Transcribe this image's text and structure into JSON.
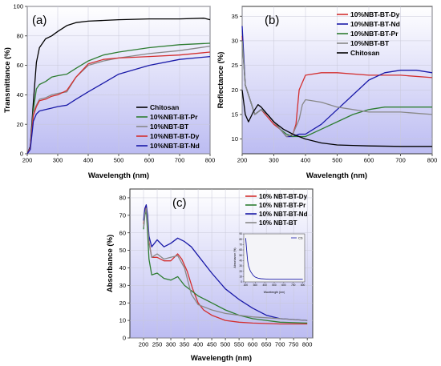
{
  "chart_data": [
    {
      "type": "line",
      "panel_label": "(a)",
      "xlabel": "Wavelength (nm)",
      "ylabel": "Transmittance (%)",
      "xlim": [
        200,
        800
      ],
      "ylim": [
        0,
        100
      ],
      "xticks": [
        "200",
        "300",
        "400",
        "500",
        "600",
        "700",
        "800"
      ],
      "yticks": [
        "0",
        "20",
        "40",
        "60",
        "80",
        "100"
      ],
      "grid": true,
      "legend_position": "bottom-right",
      "series": [
        {
          "name": "Chitosan",
          "color": "#000000",
          "x": [
            200,
            210,
            220,
            230,
            240,
            260,
            280,
            300,
            330,
            360,
            400,
            450,
            500,
            600,
            700,
            780,
            800
          ],
          "y": [
            0,
            5,
            35,
            62,
            72,
            78,
            80,
            83,
            87,
            89,
            90,
            90.5,
            91,
            91.5,
            91.5,
            92,
            91
          ]
        },
        {
          "name": "10%NBT-BT-Pr",
          "color": "#2e7d32",
          "x": [
            200,
            210,
            220,
            230,
            240,
            260,
            280,
            300,
            330,
            360,
            400,
            450,
            500,
            600,
            700,
            800
          ],
          "y": [
            0,
            4,
            30,
            44,
            47,
            49,
            52,
            53,
            54,
            58,
            63,
            67,
            69,
            72,
            74,
            75
          ]
        },
        {
          "name": "10%NBT-BT",
          "color": "#888888",
          "x": [
            200,
            210,
            220,
            230,
            240,
            260,
            280,
            300,
            330,
            360,
            400,
            450,
            500,
            600,
            700,
            800
          ],
          "y": [
            0,
            4,
            28,
            33,
            37,
            38,
            40,
            41,
            42,
            52,
            60,
            63,
            65,
            68,
            70,
            73
          ]
        },
        {
          "name": "10%NBT-BT-Dy",
          "color": "#d32f2f",
          "x": [
            200,
            210,
            220,
            230,
            240,
            260,
            280,
            300,
            330,
            360,
            400,
            450,
            500,
            600,
            700,
            800
          ],
          "y": [
            0,
            4,
            26,
            32,
            36,
            37,
            39,
            40,
            43,
            52,
            61,
            64,
            65,
            66,
            67,
            69
          ]
        },
        {
          "name": "10%NBT-BT-Nd",
          "color": "#1a1aa8",
          "x": [
            200,
            210,
            220,
            230,
            240,
            260,
            280,
            300,
            330,
            360,
            400,
            450,
            500,
            600,
            700,
            800
          ],
          "y": [
            0,
            3,
            22,
            27,
            29,
            30,
            31,
            32,
            33,
            37,
            42,
            48,
            54,
            60,
            64,
            66
          ]
        }
      ]
    },
    {
      "type": "line",
      "panel_label": "(b)",
      "xlabel": "Wavelength (nm)",
      "ylabel": "Reflectance (%)",
      "xlim": [
        200,
        800
      ],
      "ylim": [
        7,
        37
      ],
      "xticks": [
        "200",
        "300",
        "400",
        "500",
        "600",
        "700",
        "800"
      ],
      "yticks": [
        "10",
        "15",
        "20",
        "25",
        "30",
        "35"
      ],
      "grid": true,
      "legend_position": "top-right",
      "series": [
        {
          "name": "10%NBT-BT-Dy",
          "color": "#d32f2f",
          "x": [
            200,
            210,
            220,
            240,
            260,
            280,
            300,
            320,
            340,
            350,
            360,
            370,
            380,
            400,
            450,
            500,
            600,
            700,
            800
          ],
          "y": [
            31,
            21,
            19,
            15,
            16,
            14.5,
            13,
            12,
            10.5,
            10.5,
            11,
            13,
            20,
            23,
            23.5,
            23.5,
            23,
            23,
            22.5
          ]
        },
        {
          "name": "10%NBT-BT-Nd",
          "color": "#1a1aa8",
          "x": [
            200,
            210,
            220,
            240,
            260,
            280,
            300,
            320,
            340,
            360,
            380,
            400,
            450,
            500,
            550,
            600,
            650,
            700,
            750,
            800
          ],
          "y": [
            33,
            21,
            19,
            15,
            16,
            15,
            13.5,
            12,
            10.5,
            10.5,
            11,
            11,
            13,
            16,
            19,
            22,
            23.5,
            24,
            24,
            23.5
          ]
        },
        {
          "name": "10%NBT-BT-Pr",
          "color": "#2e7d32",
          "x": [
            200,
            210,
            220,
            240,
            260,
            280,
            300,
            320,
            340,
            360,
            380,
            400,
            450,
            500,
            550,
            600,
            650,
            700,
            750,
            800
          ],
          "y": [
            30,
            21,
            19,
            15,
            16,
            15,
            13.5,
            12,
            11,
            10.5,
            10.5,
            10.5,
            12,
            13.5,
            15,
            16,
            16.5,
            16.5,
            16.5,
            16.5
          ]
        },
        {
          "name": "10%NBT-BT",
          "color": "#888888",
          "x": [
            200,
            210,
            220,
            240,
            260,
            280,
            300,
            320,
            340,
            360,
            380,
            390,
            400,
            450,
            500,
            600,
            700,
            800
          ],
          "y": [
            30,
            21,
            19,
            15,
            16,
            15,
            13.5,
            12,
            10.5,
            11,
            14,
            17,
            18,
            17.5,
            16.5,
            15.5,
            15.5,
            15
          ]
        },
        {
          "name": "Chitosan",
          "color": "#000000",
          "x": [
            200,
            210,
            220,
            235,
            250,
            260,
            280,
            300,
            330,
            360,
            400,
            450,
            500,
            550,
            600,
            700,
            800
          ],
          "y": [
            20,
            15,
            13.5,
            15.5,
            17,
            16.5,
            15,
            13.5,
            12,
            11,
            10,
            9.2,
            8.8,
            8.7,
            8.6,
            8.5,
            8.5
          ]
        }
      ]
    },
    {
      "type": "line",
      "panel_label": "(c)",
      "xlabel": "Wavelength (nm)",
      "ylabel": "Absorbance (%)",
      "xlim": [
        150,
        820
      ],
      "ylim": [
        0,
        85
      ],
      "xticks": [
        "200",
        "250",
        "300",
        "350",
        "400",
        "450",
        "500",
        "550",
        "600",
        "650",
        "700",
        "750",
        "800"
      ],
      "yticks": [
        "0",
        "10",
        "20",
        "30",
        "40",
        "50",
        "60",
        "70",
        "80"
      ],
      "grid": true,
      "legend_position": "top-right",
      "series": [
        {
          "name": "10% NBT-BT-Dy",
          "color": "#d32f2f",
          "x": [
            200,
            205,
            210,
            215,
            220,
            230,
            250,
            275,
            300,
            325,
            340,
            360,
            380,
            400,
            420,
            450,
            500,
            550,
            600,
            700,
            800
          ],
          "y": [
            65,
            72,
            75,
            68,
            55,
            46,
            46,
            44,
            44,
            48,
            45,
            38,
            28,
            20,
            16,
            13,
            10,
            9,
            8.5,
            8,
            8
          ]
        },
        {
          "name": "10% NBT-BT-Pr",
          "color": "#2e7d32",
          "x": [
            200,
            205,
            210,
            215,
            220,
            230,
            250,
            275,
            300,
            325,
            350,
            400,
            450,
            500,
            550,
            600,
            650,
            700,
            800
          ],
          "y": [
            62,
            70,
            73,
            60,
            45,
            36,
            37,
            34,
            33,
            35,
            30,
            24,
            20,
            16,
            13,
            11,
            10,
            9,
            8.5
          ]
        },
        {
          "name": "10% NBT-BT-Nd",
          "color": "#1a1aa8",
          "x": [
            200,
            205,
            210,
            215,
            220,
            230,
            250,
            275,
            300,
            325,
            350,
            375,
            400,
            450,
            500,
            550,
            600,
            650,
            700,
            800
          ],
          "y": [
            67,
            74,
            76,
            70,
            58,
            52,
            56,
            52,
            54,
            57,
            55,
            52,
            47,
            37,
            28,
            22,
            17,
            13,
            11,
            10
          ]
        },
        {
          "name": "10% NBT-BT",
          "color": "#888888",
          "x": [
            200,
            205,
            210,
            215,
            220,
            230,
            250,
            275,
            300,
            325,
            350,
            375,
            400,
            450,
            500,
            550,
            600,
            700,
            800
          ],
          "y": [
            63,
            71,
            74,
            66,
            54,
            46,
            48,
            45,
            46,
            47,
            40,
            25,
            19,
            16,
            14,
            13,
            12,
            11,
            10
          ]
        }
      ],
      "inset": {
        "legend": "CS",
        "xlabel": "Wavelength (nm)",
        "ylabel": "Absorbance (%)",
        "xticks": [
          "200",
          "300",
          "400",
          "500",
          "600",
          "700",
          "800"
        ],
        "yticks": [
          "0",
          "10",
          "20",
          "30",
          "40",
          "50",
          "60",
          "70",
          "80",
          "90"
        ],
        "xlim": [
          180,
          820
        ],
        "ylim": [
          0,
          90
        ],
        "series": {
          "color": "#1a1aa8",
          "x": [
            200,
            210,
            220,
            230,
            250,
            280,
            300,
            330,
            360,
            400,
            450,
            500,
            600,
            700,
            800
          ],
          "y": [
            82,
            60,
            40,
            30,
            20,
            12,
            9,
            7,
            6,
            5.5,
            5,
            5,
            5,
            5,
            5
          ]
        }
      }
    }
  ]
}
